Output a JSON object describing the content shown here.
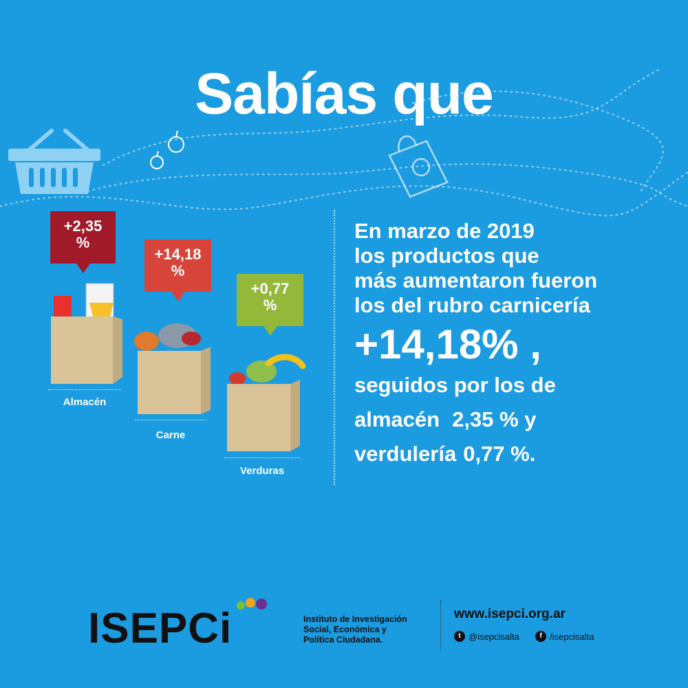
{
  "title": "Sabías que",
  "colors": {
    "background": "#1b9be0",
    "badge_almacen": "#a01a2a",
    "badge_carne": "#d6443a",
    "badge_verduras": "#93b83a",
    "bag": "#d9c49a"
  },
  "icons": [
    "basket-icon",
    "apple-icon",
    "shopping-bag-icon",
    "twitter-icon",
    "facebook-icon"
  ],
  "categories": [
    {
      "label": "Almacén",
      "badge_line1": "+2,35",
      "badge_line2": "%"
    },
    {
      "label": "Carne",
      "badge_line1": "+14,18",
      "badge_line2": "%"
    },
    {
      "label": "Verduras",
      "badge_line1": "+0,77",
      "badge_line2": "%"
    }
  ],
  "text": {
    "line1": "En marzo de 2019",
    "line2": "los productos que",
    "line3": "más aumentaron fueron",
    "line4": "los del rubro carnicería",
    "big": "+14,18% ,",
    "line5": "seguidos por los de",
    "line6a": "almacén",
    "line6b": "2,35 % y",
    "line7a": "verdulería",
    "line7b": "0,77 %."
  },
  "footer": {
    "logo": "ISEPCi",
    "institute_line1": "Instituto de Investigación",
    "institute_line2": "Social, Económica y",
    "institute_line3": "Política Ciudadana.",
    "web": "www.isepci.org.ar",
    "twitter": "@isepcisalta",
    "facebook": "/isepcisalta"
  }
}
